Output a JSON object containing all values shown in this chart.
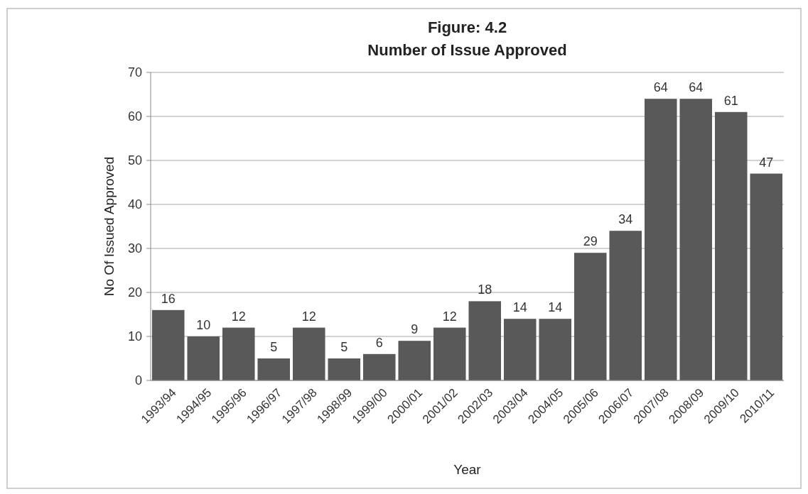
{
  "chart_data": {
    "type": "bar",
    "title": "Figure: 4.2",
    "subtitle": "Number of Issue Approved",
    "xlabel": "Year",
    "ylabel": "No Of Issued Approved",
    "categories": [
      "1993/94",
      "1994/95",
      "1995/96",
      "1996/97",
      "1997/98",
      "1998/99",
      "1999/00",
      "2000/01",
      "2001/02",
      "2002/03",
      "2003/04",
      "2004/05",
      "2005/06",
      "2006/07",
      "2007/08",
      "2008/09",
      "2009/10",
      "2010/11"
    ],
    "values": [
      16,
      10,
      12,
      5,
      12,
      5,
      6,
      9,
      12,
      18,
      14,
      14,
      29,
      34,
      64,
      64,
      61,
      47
    ],
    "color": "#595959",
    "ylim": [
      0,
      70
    ],
    "yticks": [
      0,
      10,
      20,
      30,
      40,
      50,
      60,
      70
    ],
    "grid": "y",
    "data_labels": true
  }
}
